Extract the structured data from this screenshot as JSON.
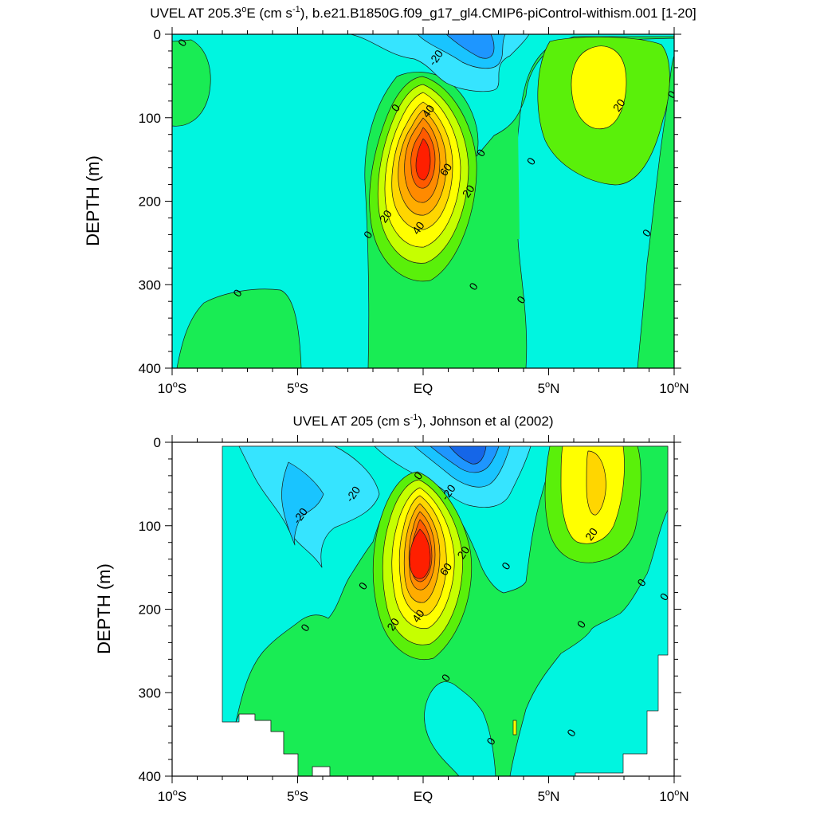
{
  "chart_data": [
    {
      "type": "contour",
      "title": "UVEL AT 205.3°E (cm s-1), b.e21.B1850G.f09_g17_gl4.CMIP6-piControl-withism.001 [1-20]",
      "title_main": "UVEL AT 205.3",
      "title_deg": "o",
      "title_mid": "E (cm s",
      "title_sup": "-1",
      "title_tail": "), b.e21.B1850G.f09_g17_gl4.CMIP6-piControl-withism.001 [1-20]",
      "ylabel": "DEPTH (m)",
      "xlabel": "",
      "xlim": [
        -10,
        10
      ],
      "ylim": [
        400,
        0
      ],
      "y_reversed": true,
      "x_ticks": [
        {
          "value": -10,
          "label": "10",
          "deg": "o",
          "hemi": "S"
        },
        {
          "value": -5,
          "label": "5",
          "deg": "o",
          "hemi": "S"
        },
        {
          "value": 0,
          "label": "EQ",
          "deg": "",
          "hemi": ""
        },
        {
          "value": 5,
          "label": "5",
          "deg": "o",
          "hemi": "N"
        },
        {
          "value": 10,
          "label": "10",
          "deg": "o",
          "hemi": "N"
        }
      ],
      "y_ticks": [
        {
          "value": 0,
          "label": "0"
        },
        {
          "value": 100,
          "label": "100"
        },
        {
          "value": 200,
          "label": "200"
        },
        {
          "value": 300,
          "label": "300"
        },
        {
          "value": 400,
          "label": "400"
        }
      ],
      "contour_interval": 10,
      "features": [
        {
          "name": "equatorial undercurrent",
          "lat": 0,
          "depth": 145,
          "max": 75
        },
        {
          "name": "south equatorial current",
          "lat": 1.8,
          "depth": 15,
          "min": -30
        },
        {
          "name": "north equatorial countercurrent",
          "lat": 6.8,
          "depth": 70,
          "max": 25
        }
      ],
      "contour_labels": [
        {
          "text": "0",
          "lat": -9.6,
          "depth": 10
        },
        {
          "text": "-20",
          "lat": 0.5,
          "depth": 28
        },
        {
          "text": "0",
          "lat": -1.1,
          "depth": 88
        },
        {
          "text": "40",
          "lat": 0.2,
          "depth": 92
        },
        {
          "text": "20",
          "lat": 7.8,
          "depth": 85
        },
        {
          "text": "0",
          "lat": 9.9,
          "depth": 72
        },
        {
          "text": "0",
          "lat": 2.3,
          "depth": 142
        },
        {
          "text": "0",
          "lat": 4.3,
          "depth": 152
        },
        {
          "text": "60",
          "lat": 0.9,
          "depth": 162
        },
        {
          "text": "20",
          "lat": 1.8,
          "depth": 188
        },
        {
          "text": "20",
          "lat": -1.5,
          "depth": 218
        },
        {
          "text": "40",
          "lat": -0.2,
          "depth": 232
        },
        {
          "text": "0",
          "lat": -2.2,
          "depth": 240
        },
        {
          "text": "0",
          "lat": 8.9,
          "depth": 238
        },
        {
          "text": "0",
          "lat": 2.0,
          "depth": 302
        },
        {
          "text": "0",
          "lat": -7.4,
          "depth": 310
        },
        {
          "text": "0",
          "lat": 3.9,
          "depth": 318
        }
      ]
    },
    {
      "type": "contour",
      "title": "UVEL AT 205 (cm s-1), Johnson et al (2002)",
      "title_main": "UVEL AT 205 (cm s",
      "title_sup": "-1",
      "title_tail": "), Johnson et al (2002)",
      "ylabel": "DEPTH (m)",
      "xlabel": "",
      "xlim": [
        -10,
        10
      ],
      "ylim": [
        400,
        0
      ],
      "y_reversed": true,
      "data_extent": {
        "lat_min": -8,
        "lat_max": 9.8
      },
      "x_ticks": [
        {
          "value": -10,
          "label": "10",
          "deg": "o",
          "hemi": "S"
        },
        {
          "value": -5,
          "label": "5",
          "deg": "o",
          "hemi": "S"
        },
        {
          "value": 0,
          "label": "EQ",
          "deg": "",
          "hemi": ""
        },
        {
          "value": 5,
          "label": "5",
          "deg": "o",
          "hemi": "N"
        },
        {
          "value": 10,
          "label": "10",
          "deg": "o",
          "hemi": "N"
        }
      ],
      "y_ticks": [
        {
          "value": 0,
          "label": "0"
        },
        {
          "value": 100,
          "label": "100"
        },
        {
          "value": 200,
          "label": "200"
        },
        {
          "value": 300,
          "label": "300"
        },
        {
          "value": 400,
          "label": "400"
        }
      ],
      "contour_interval": 10,
      "features": [
        {
          "name": "equatorial undercurrent",
          "lat": 0,
          "depth": 130,
          "max": 90
        },
        {
          "name": "south equatorial current",
          "lat": 1.8,
          "depth": 15,
          "min": -40
        },
        {
          "name": "north equatorial countercurrent",
          "lat": 7,
          "depth": 55,
          "max": 35
        }
      ],
      "contour_labels": [
        {
          "text": "0",
          "lat": -0.2,
          "depth": 40
        },
        {
          "text": "-20",
          "lat": 1.0,
          "depth": 60
        },
        {
          "text": "-20",
          "lat": -2.8,
          "depth": 62
        },
        {
          "text": "-20",
          "lat": -4.9,
          "depth": 88
        },
        {
          "text": "20",
          "lat": 6.7,
          "depth": 110
        },
        {
          "text": "20",
          "lat": 1.6,
          "depth": 132
        },
        {
          "text": "0",
          "lat": 3.3,
          "depth": 148
        },
        {
          "text": "60",
          "lat": 0.9,
          "depth": 152
        },
        {
          "text": "0",
          "lat": -2.4,
          "depth": 172
        },
        {
          "text": "0",
          "lat": 8.7,
          "depth": 168
        },
        {
          "text": "0",
          "lat": 9.6,
          "depth": 185
        },
        {
          "text": "20",
          "lat": -1.2,
          "depth": 218
        },
        {
          "text": "40",
          "lat": -0.2,
          "depth": 208
        },
        {
          "text": "0",
          "lat": 6.3,
          "depth": 218
        },
        {
          "text": "0",
          "lat": -4.7,
          "depth": 222
        },
        {
          "text": "0",
          "lat": 0.9,
          "depth": 282
        },
        {
          "text": "0",
          "lat": 5.9,
          "depth": 348
        },
        {
          "text": "0",
          "lat": 2.7,
          "depth": 358
        }
      ]
    }
  ],
  "colors": {
    "c_neg40": "#1566e8",
    "c_neg30": "#1e96ff",
    "c_neg20": "#19c4ff",
    "c_neg10": "#36e4ff",
    "c_0": "#00f5e0",
    "c_10": "#19ec54",
    "c_20": "#5af00a",
    "c_30": "#c6ff00",
    "c_40": "#ffff00",
    "c_50": "#ffd600",
    "c_60": "#ffac00",
    "c_70": "#ff8a00",
    "c_80": "#ff5a00",
    "c_90": "#ff1f00",
    "line": "#1a1a1a"
  }
}
